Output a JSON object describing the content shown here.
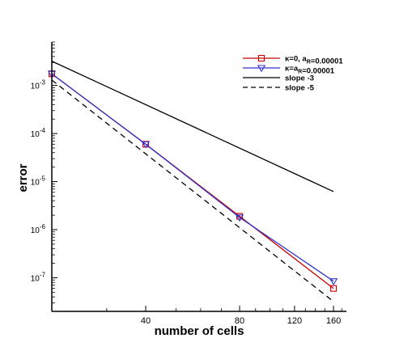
{
  "chart_data": {
    "type": "line",
    "xlabel": "number of cells",
    "ylabel": "error",
    "x_scale": "log",
    "y_scale": "log",
    "xlim": [
      20,
      176
    ],
    "ylim": [
      2e-08,
      0.008
    ],
    "x_ticks": [
      {
        "value": 40,
        "label": "40"
      },
      {
        "value": 80,
        "label": "80"
      },
      {
        "value": 120,
        "label": "120"
      },
      {
        "value": 160,
        "label": "160"
      }
    ],
    "y_ticks": [
      {
        "value": 1e-07,
        "base": "10",
        "exp": "-7"
      },
      {
        "value": 1e-06,
        "base": "10",
        "exp": "-6"
      },
      {
        "value": 1e-05,
        "base": "10",
        "exp": "-5"
      },
      {
        "value": 0.0001,
        "base": "10",
        "exp": "-4"
      },
      {
        "value": 0.001,
        "base": "10",
        "exp": "-3"
      }
    ],
    "legend_position": "top-right",
    "series": [
      {
        "name_parts": [
          {
            "t": "κ=0, a"
          },
          {
            "t": "R",
            "sub": true
          },
          {
            "t": "=0.00001"
          }
        ],
        "color": "#cc0000",
        "marker": "square",
        "dash": "solid",
        "x": [
          20,
          40,
          80,
          160
        ],
        "y": [
          0.00175,
          6e-05,
          1.9e-06,
          6e-08
        ]
      },
      {
        "name_parts": [
          {
            "t": "κ=a"
          },
          {
            "t": "R",
            "sub": true
          },
          {
            "t": "=0.00001"
          }
        ],
        "color": "#3333cc",
        "marker": "triangle-down",
        "dash": "solid",
        "x": [
          20,
          40,
          80,
          160
        ],
        "y": [
          0.00175,
          6e-05,
          1.8e-06,
          8.5e-08
        ]
      },
      {
        "name_parts": [
          {
            "t": "slope -3"
          }
        ],
        "color": "#000000",
        "marker": "none",
        "dash": "solid",
        "x": [
          20,
          160
        ],
        "y": [
          0.0032,
          6.2e-06
        ]
      },
      {
        "name_parts": [
          {
            "t": "slope -5"
          }
        ],
        "color": "#000000",
        "marker": "none",
        "dash": "dashed",
        "x": [
          20,
          160
        ],
        "y": [
          0.0013,
          3.2e-08
        ]
      }
    ]
  }
}
